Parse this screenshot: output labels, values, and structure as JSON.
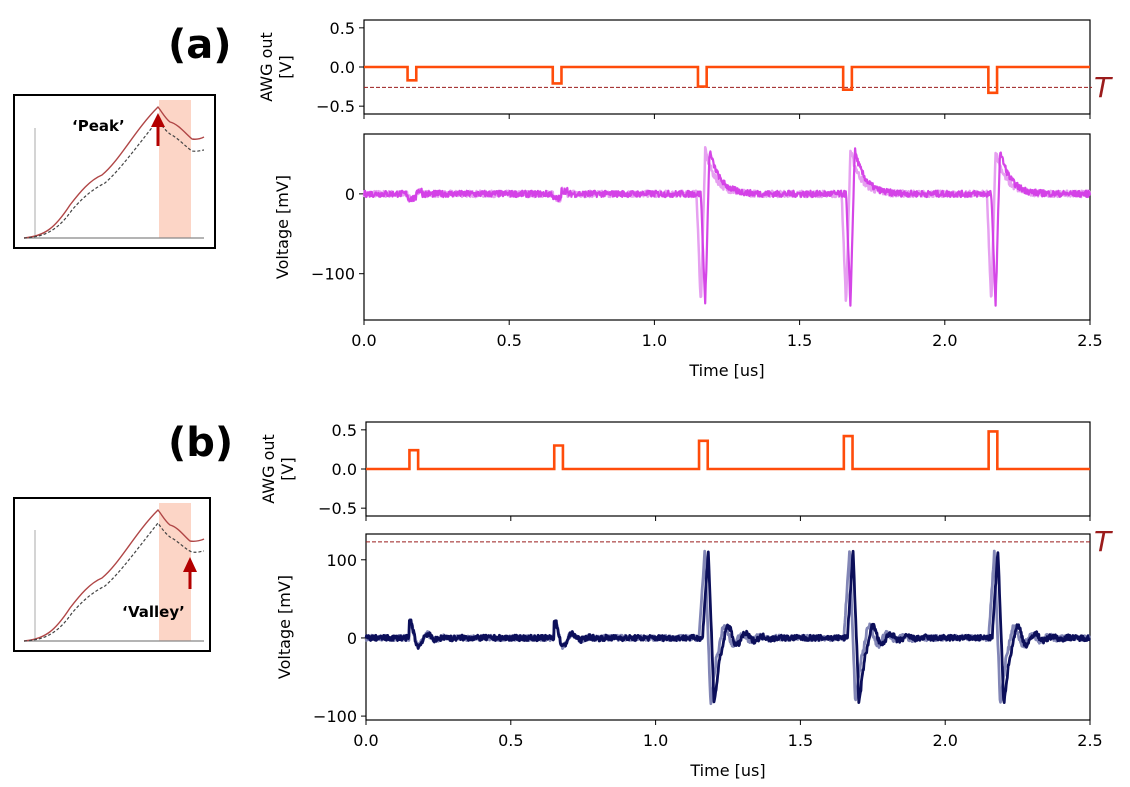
{
  "colors": {
    "awg": "#ff4c0a",
    "voltage_a": "#d33ce6",
    "voltage_a_light": "#e6a0f0",
    "voltage_b": "#0c0f5a",
    "voltage_b_light": "#7b7fb2",
    "threshold": "#9b1c1c",
    "inset_highlight": "#fcd5c6",
    "inset_solid": "#b04646",
    "inset_dashed": "#444444",
    "arrow": "#b30000"
  },
  "panels": {
    "a": {
      "label": "(a)",
      "inset": {
        "annotation": "‘Peak’"
      },
      "threshold_label": "T"
    },
    "b": {
      "label": "(b)",
      "inset": {
        "annotation": "‘Valley’"
      },
      "threshold_label": "T"
    }
  },
  "chart_data": [
    {
      "id": "a-awg",
      "type": "line",
      "title": "",
      "ylabel": "AWG out [V]",
      "ylabel_lines": [
        "AWG out",
        "[V]"
      ],
      "xlabel": "",
      "xlim": [
        0.0,
        2.5
      ],
      "ylim": [
        -0.6,
        0.6
      ],
      "yticks": [
        0.5,
        0.0,
        -0.5
      ],
      "ytick_labels": [
        "0.5",
        "0.0",
        "−0.5"
      ],
      "xticks": [
        0.0,
        0.5,
        1.0,
        1.5,
        2.0,
        2.5
      ],
      "show_xticklabels": false,
      "pulse_starts": [
        0.15,
        0.65,
        1.15,
        1.65,
        2.15
      ],
      "pulse_width": 0.03,
      "pulse_amplitudes": [
        -0.17,
        -0.21,
        -0.25,
        -0.29,
        -0.33
      ],
      "threshold": -0.26
    },
    {
      "id": "a-voltage",
      "type": "line",
      "title": "",
      "ylabel": "Voltage [mV]",
      "xlabel": "Time [us]",
      "xlim": [
        0.0,
        2.5
      ],
      "ylim": [
        -158,
        75
      ],
      "yticks": [
        0,
        -100
      ],
      "ytick_labels": [
        "0",
        "−100"
      ],
      "xticks": [
        0.0,
        0.5,
        1.0,
        1.5,
        2.0,
        2.5
      ],
      "xtick_labels": [
        "0.0",
        "0.5",
        "1.0",
        "1.5",
        "2.0",
        "2.5"
      ],
      "spike_times": [
        1.15,
        1.65,
        2.15
      ],
      "spike_minimum": -140,
      "spike_peak": 55,
      "baseline": 0
    },
    {
      "id": "b-awg",
      "type": "line",
      "title": "",
      "ylabel": "AWG out [V]",
      "ylabel_lines": [
        "AWG out",
        "[V]"
      ],
      "xlabel": "",
      "xlim": [
        0.0,
        2.5
      ],
      "ylim": [
        -0.6,
        0.6
      ],
      "yticks": [
        0.5,
        0.0,
        -0.5
      ],
      "ytick_labels": [
        "0.5",
        "0.0",
        "−0.5"
      ],
      "xticks": [
        0.0,
        0.5,
        1.0,
        1.5,
        2.0,
        2.5
      ],
      "show_xticklabels": false,
      "pulse_starts": [
        0.15,
        0.65,
        1.15,
        1.65,
        2.15
      ],
      "pulse_width": 0.03,
      "pulse_amplitudes": [
        0.24,
        0.3,
        0.36,
        0.42,
        0.48
      ]
    },
    {
      "id": "b-voltage",
      "type": "line",
      "title": "",
      "ylabel": "Voltage [mV]",
      "xlabel": "Time [us]",
      "xlim": [
        0.0,
        2.5
      ],
      "ylim": [
        -105,
        133
      ],
      "yticks": [
        100,
        0,
        -100
      ],
      "ytick_labels": [
        "100",
        "0",
        "−100"
      ],
      "xticks": [
        0.0,
        0.5,
        1.0,
        1.5,
        2.0,
        2.5
      ],
      "xtick_labels": [
        "0.0",
        "0.5",
        "1.0",
        "1.5",
        "2.0",
        "2.5"
      ],
      "spike_times": [
        1.15,
        1.65,
        2.15
      ],
      "spike_peak": 112,
      "spike_minimum": -85,
      "threshold": 123,
      "baseline": 0
    }
  ]
}
